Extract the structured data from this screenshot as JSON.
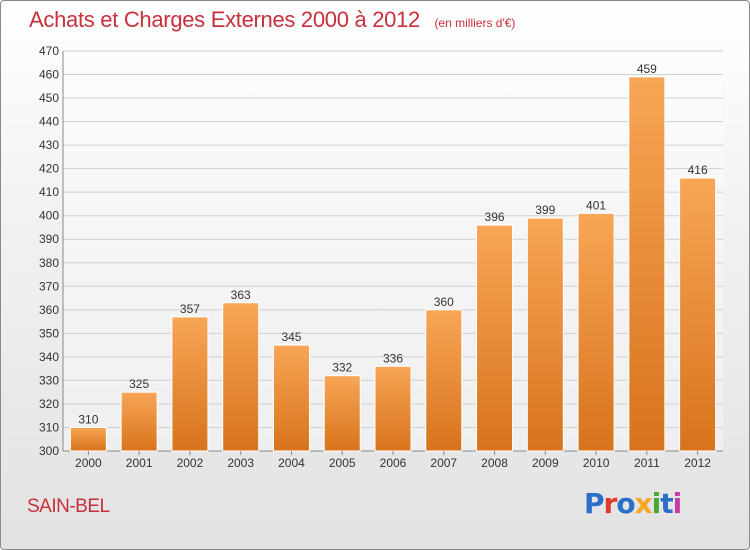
{
  "header": {
    "title": "Achats et Charges Externes 2000 à 2012",
    "subtitle": "(en milliers d'€)"
  },
  "footer": {
    "place": "SAIN-BEL",
    "logo_text": "Proxiti",
    "logo_colors": [
      "#2a6fc9",
      "#e03a2e",
      "#2a6fc9",
      "#f5a623",
      "#4aa832",
      "#2a6fc9",
      "#c83aa3"
    ]
  },
  "colors": {
    "bar_top": "#f7a656",
    "bar_bottom": "#d8731c",
    "grid": "#cfcfcf",
    "title": "#c8303c"
  },
  "chart_data": {
    "type": "bar",
    "title": "Achats et Charges Externes 2000 à 2012",
    "subtitle": "(en milliers d'€)",
    "xlabel": "",
    "ylabel": "",
    "categories": [
      "2000",
      "2001",
      "2002",
      "2003",
      "2004",
      "2005",
      "2006",
      "2007",
      "2008",
      "2009",
      "2010",
      "2011",
      "2012"
    ],
    "values": [
      310,
      325,
      357,
      363,
      345,
      332,
      336,
      360,
      396,
      399,
      401,
      459,
      416
    ],
    "ylim": [
      300,
      470
    ],
    "ytick_step": 10,
    "grid": true,
    "data_labels": true
  }
}
